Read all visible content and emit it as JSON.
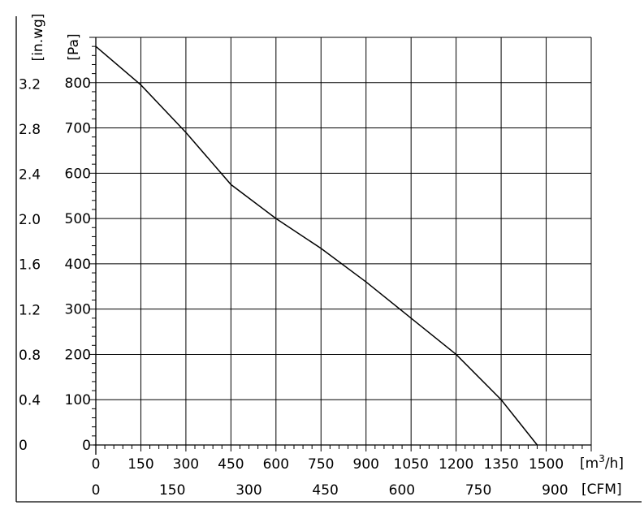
{
  "chart_data": {
    "type": "line",
    "x_primary": {
      "unit_base": "[m",
      "unit_sup": "3",
      "unit_tail": "/h]",
      "min": 0,
      "max": 1650,
      "ticks": [
        0,
        150,
        300,
        450,
        600,
        750,
        900,
        1050,
        1200,
        1350,
        1500
      ],
      "tick_labels": [
        "0",
        "150",
        "300",
        "450",
        "600",
        "750",
        "900",
        "1050",
        "1200",
        "1350",
        "1500"
      ]
    },
    "x_secondary": {
      "unit": "[CFM]",
      "ticks": [
        0,
        150,
        300,
        450,
        600,
        750,
        900
      ],
      "tick_labels": [
        "0",
        "150",
        "300",
        "450",
        "600",
        "750",
        "900"
      ]
    },
    "y_primary": {
      "unit": "[Pa]",
      "min": 0,
      "max": 900,
      "ticks": [
        0,
        100,
        200,
        300,
        400,
        500,
        600,
        700,
        800
      ],
      "tick_labels": [
        "0",
        "100",
        "200",
        "300",
        "400",
        "500",
        "600",
        "700",
        "800"
      ]
    },
    "y_secondary": {
      "unit": "[in.wg]",
      "ticks": [
        0,
        0.4,
        0.8,
        1.2,
        1.6,
        2.0,
        2.4,
        2.8,
        3.2
      ],
      "tick_labels": [
        "0",
        "0.4",
        "0.8",
        "1.2",
        "1.6",
        "2.0",
        "2.4",
        "2.8",
        "3.2"
      ]
    },
    "grid": true,
    "series": [
      {
        "points": [
          [
            0,
            880
          ],
          [
            150,
            795
          ],
          [
            300,
            690
          ],
          [
            450,
            575
          ],
          [
            600,
            500
          ],
          [
            750,
            434
          ],
          [
            900,
            360
          ],
          [
            1050,
            280
          ],
          [
            1200,
            200
          ],
          [
            1350,
            100
          ],
          [
            1470,
            0
          ]
        ]
      }
    ]
  }
}
